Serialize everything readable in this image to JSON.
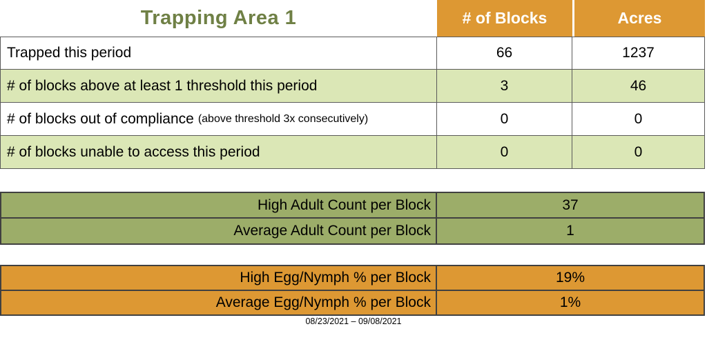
{
  "page": {
    "title": "Trapping Area 1",
    "caption": "08/23/2021 – 09/08/2021"
  },
  "colors": {
    "header_orange": "#dd9833",
    "row_light_green": "#dbe7b6",
    "adult_table_olive": "#9cad69",
    "title_green": "#6f8045",
    "summary_border_gray": "#595959",
    "mini_border_dark": "#404040"
  },
  "summary_table": {
    "columns": [
      "# of Blocks",
      "Acres"
    ],
    "rows": [
      {
        "label": "Trapped this period",
        "blocks": "66",
        "acres": "1237"
      },
      {
        "label": "# of blocks above at least 1 threshold this period",
        "blocks": "3",
        "acres": "46"
      },
      {
        "label": "# of blocks out of compliance",
        "note": "(above threshold 3x consecutively)",
        "blocks": "0",
        "acres": "0"
      },
      {
        "label": "# of blocks unable to access this period",
        "blocks": "0",
        "acres": "0"
      }
    ]
  },
  "adult_table": {
    "rows": [
      {
        "label": "High Adult Count per Block",
        "value": "37"
      },
      {
        "label": "Average Adult Count per Block",
        "value": "1"
      }
    ]
  },
  "egg_table": {
    "rows": [
      {
        "label": "High Egg/Nymph % per Block",
        "value": "19%"
      },
      {
        "label": "Average Egg/Nymph % per Block",
        "value": "1%"
      }
    ]
  }
}
